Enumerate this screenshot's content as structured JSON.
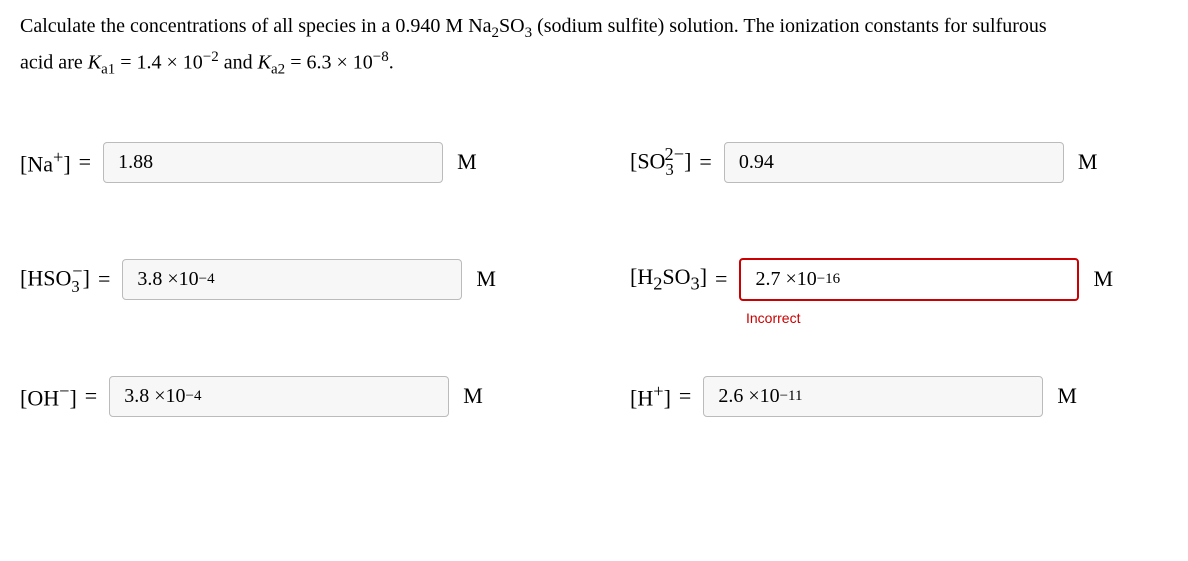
{
  "question": {
    "line1_pre": "Calculate the concentrations of all species in a 0.940 M Na",
    "sub1": "2",
    "mid1": "SO",
    "sub2": "3",
    "line1_post": " (sodium sulfite) solution. The ionization constants for sulfurous",
    "line2_pre": "acid are ",
    "ka1_label_K": "K",
    "ka1_label_sub": "a1",
    "ka1_eq": " = 1.4 × 10",
    "ka1_exp": "−2",
    "and": " and ",
    "ka2_label_K": "K",
    "ka2_label_sub": "a2",
    "ka2_eq": " = 6.3 × 10",
    "ka2_exp": "−8",
    "period": "."
  },
  "unit": "M",
  "eq": "=",
  "rows": [
    {
      "left": {
        "species_html": "[Na<sup>+</sup>]",
        "value": "1.88",
        "incorrect": false
      },
      "right": {
        "species_html": "[SO<span class='sub' style='display:inline-block;vertical-align:-0.4em;'>3</span><sup style='margin-left:-0.5em;'>2−</sup>]",
        "value": "0.94",
        "incorrect": false
      }
    },
    {
      "left": {
        "species_html": "[HSO<span class='sub' style='display:inline-block;vertical-align:-0.4em;'>3</span><sup style='margin-left:-0.4em;'>−</sup>]",
        "value_pre": "3.8  ×10",
        "value_exp": "−4",
        "incorrect": false
      },
      "right": {
        "species_html": "[H<sub>2</sub>SO<sub>3</sub>]",
        "value_pre": "2.7  ×10",
        "value_exp": "−16",
        "incorrect": true,
        "feedback": "Incorrect"
      }
    },
    {
      "left": {
        "species_html": "[OH<sup>−</sup>]",
        "value_pre": "3.8  ×10",
        "value_exp": "−4",
        "incorrect": false
      },
      "right": {
        "species_html": "[H<sup>+</sup>]",
        "value_pre": "2.6  ×10",
        "value_exp": "−11",
        "incorrect": false
      }
    }
  ]
}
